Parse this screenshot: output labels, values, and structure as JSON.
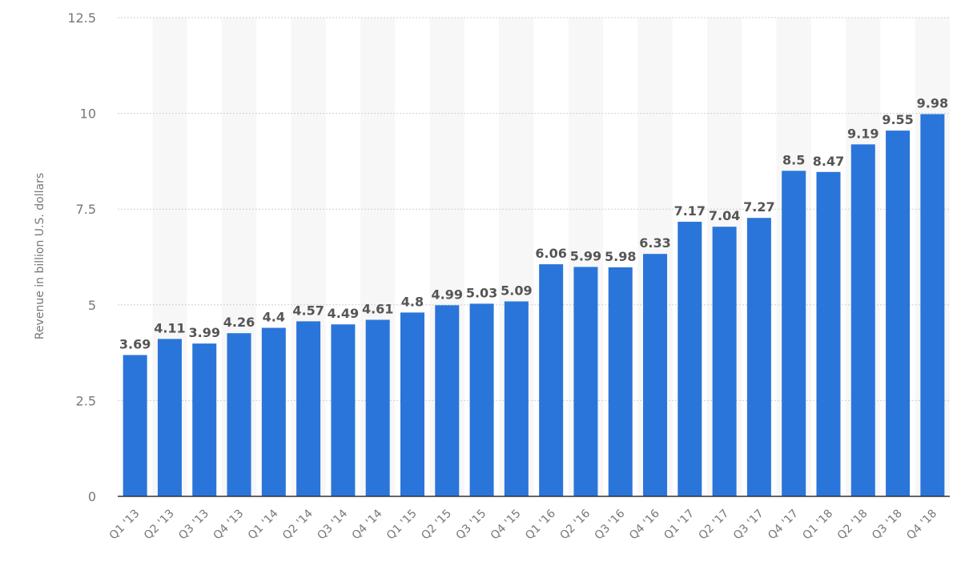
{
  "chart_data": {
    "type": "bar",
    "title": "",
    "xlabel": "",
    "ylabel": "Revenue in billion U.S. dollars",
    "ylim": [
      0,
      12.5
    ],
    "yticks": [
      0,
      2.5,
      5,
      7.5,
      10,
      12.5
    ],
    "ytick_labels": [
      "0",
      "2.5",
      "5",
      "7.5",
      "10",
      "12.5"
    ],
    "grid": true,
    "legend": null,
    "bar_color": "#2a75d9",
    "categories": [
      "Q1 '13",
      "Q2 '13",
      "Q3 '13",
      "Q4 '13",
      "Q1 '14",
      "Q2 '14",
      "Q3 '14",
      "Q4 '14",
      "Q1 '15",
      "Q2 '15",
      "Q3 '15",
      "Q4 '15",
      "Q1 '16",
      "Q2 '16",
      "Q3 '16",
      "Q4 '16",
      "Q1 '17",
      "Q2 '17",
      "Q3 '17",
      "Q4 '17",
      "Q1 '18",
      "Q2 '18",
      "Q3 '18",
      "Q4 '18"
    ],
    "values": [
      3.69,
      4.11,
      3.99,
      4.26,
      4.4,
      4.57,
      4.49,
      4.61,
      4.8,
      4.99,
      5.03,
      5.09,
      6.06,
      5.99,
      5.98,
      6.33,
      7.17,
      7.04,
      7.27,
      8.5,
      8.47,
      9.19,
      9.55,
      9.98
    ],
    "value_labels": [
      "3.69",
      "4.11",
      "3.99",
      "4.26",
      "4.4",
      "4.57",
      "4.49",
      "4.61",
      "4.8",
      "4.99",
      "5.03",
      "5.09",
      "6.06",
      "5.99",
      "5.98",
      "6.33",
      "7.17",
      "7.04",
      "7.27",
      "8.5",
      "8.47",
      "9.19",
      "9.55",
      "9.98"
    ]
  }
}
